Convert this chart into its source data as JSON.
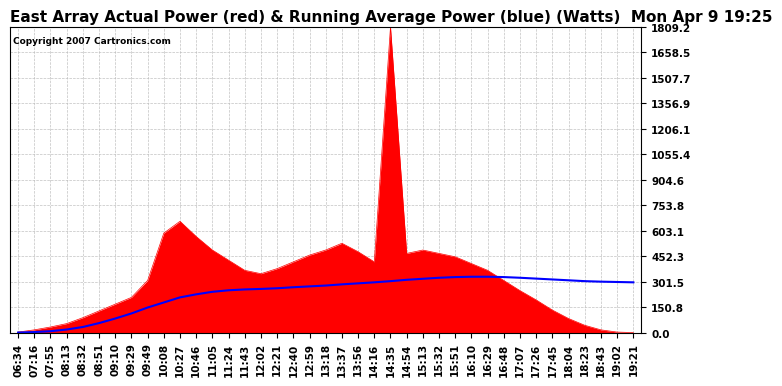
{
  "title": "East Array Actual Power (red) & Running Average Power (blue) (Watts)  Mon Apr 9 19:25",
  "copyright": "Copyright 2007 Cartronics.com",
  "ylabel_ticks": [
    0.0,
    150.8,
    301.5,
    452.3,
    603.1,
    753.8,
    904.6,
    1055.4,
    1206.1,
    1356.9,
    1507.7,
    1658.5,
    1809.2
  ],
  "ymax": 1809.2,
  "ymin": 0.0,
  "background_color": "#ffffff",
  "plot_bg_color": "#ffffff",
  "grid_color": "#bbbbbb",
  "actual_color": "#ff0000",
  "avg_color": "#0000ff",
  "title_fontsize": 11,
  "tick_fontsize": 7.5,
  "x_tick_labels": [
    "06:34",
    "07:16",
    "07:55",
    "08:13",
    "08:32",
    "08:51",
    "09:10",
    "09:29",
    "09:49",
    "10:08",
    "10:27",
    "10:46",
    "11:05",
    "11:24",
    "11:43",
    "12:02",
    "12:21",
    "12:40",
    "12:59",
    "13:18",
    "13:37",
    "13:56",
    "14:16",
    "14:35",
    "14:54",
    "15:13",
    "15:32",
    "15:51",
    "16:10",
    "16:29",
    "16:48",
    "17:07",
    "17:26",
    "17:45",
    "18:04",
    "18:23",
    "18:43",
    "19:02",
    "19:21"
  ],
  "actual_power": [
    5,
    18,
    35,
    55,
    90,
    130,
    170,
    210,
    310,
    590,
    660,
    570,
    490,
    430,
    370,
    350,
    380,
    420,
    460,
    490,
    530,
    480,
    420,
    1809,
    470,
    490,
    470,
    450,
    410,
    370,
    310,
    250,
    195,
    135,
    85,
    45,
    18,
    5,
    2
  ],
  "avg_power": [
    2,
    5,
    10,
    20,
    35,
    58,
    85,
    115,
    150,
    180,
    210,
    228,
    243,
    252,
    257,
    260,
    264,
    270,
    275,
    280,
    287,
    293,
    299,
    306,
    314,
    320,
    326,
    330,
    332,
    332,
    330,
    326,
    321,
    316,
    311,
    306,
    303,
    301,
    299
  ]
}
